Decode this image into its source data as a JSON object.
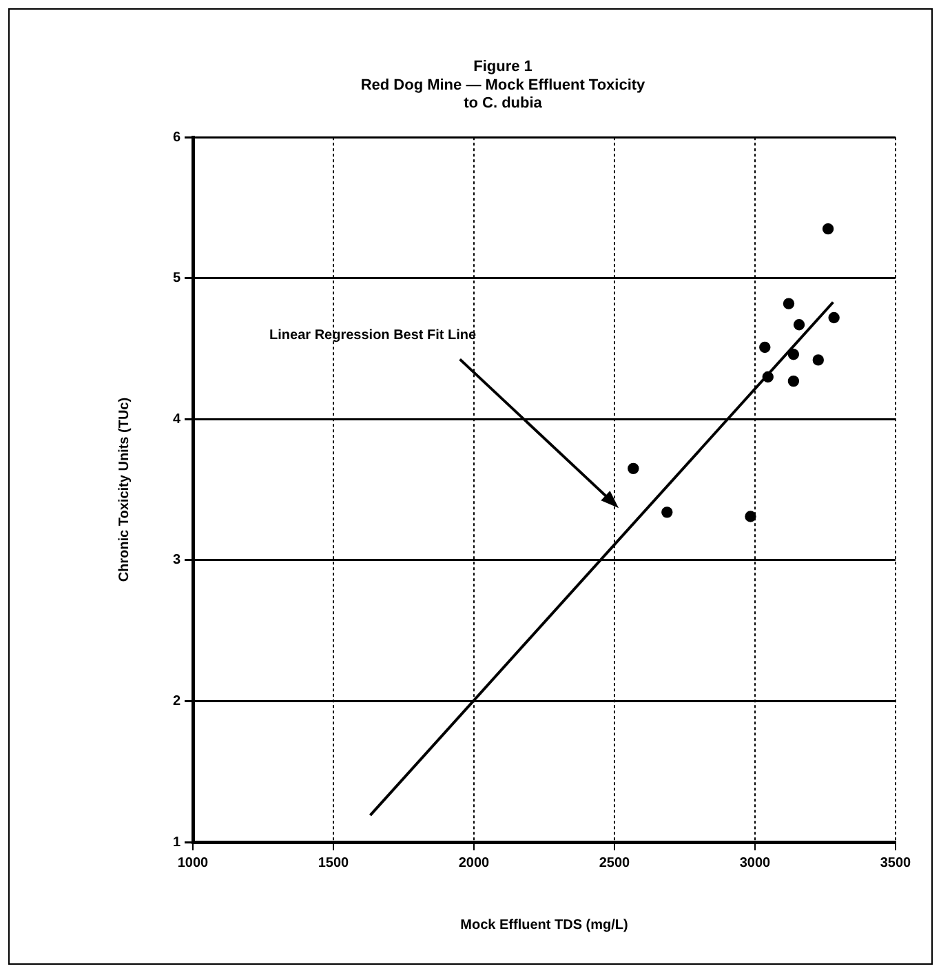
{
  "chart_data": {
    "type": "scatter",
    "title": [
      "Figure 1",
      "Red Dog Mine — Mock Effluent Toxicity",
      "to C. dubia"
    ],
    "xlabel": "Mock Effluent TDS (mg/L)",
    "ylabel": "Chronic Toxicity Units (TUc)",
    "xlim": [
      1000,
      3500
    ],
    "xticks": [
      1000,
      1500,
      2000,
      2500,
      3000,
      3500
    ],
    "ylim": [
      1,
      6
    ],
    "yticks": [
      1,
      2,
      3,
      4,
      5,
      6
    ],
    "grid": true,
    "legend": false,
    "series": [
      {
        "color": "#000000",
        "marker": "circle",
        "x": [
          2567,
          2687,
          2984,
          3120,
          3281,
          3157,
          3035,
          3137,
          3225,
          3046,
          3137,
          3260
        ],
        "values": [
          3.65,
          3.34,
          3.31,
          4.82,
          4.72,
          4.67,
          4.51,
          4.46,
          4.42,
          4.3,
          4.27,
          5.35
        ]
      },
      {
        "type": "line",
        "color": "#000000",
        "marker": "none",
        "x": [
          1631,
          3278
        ],
        "values": [
          1.19,
          4.83
        ]
      }
    ],
    "annotations": [
      "Linear Regression Best Fit Line"
    ]
  }
}
